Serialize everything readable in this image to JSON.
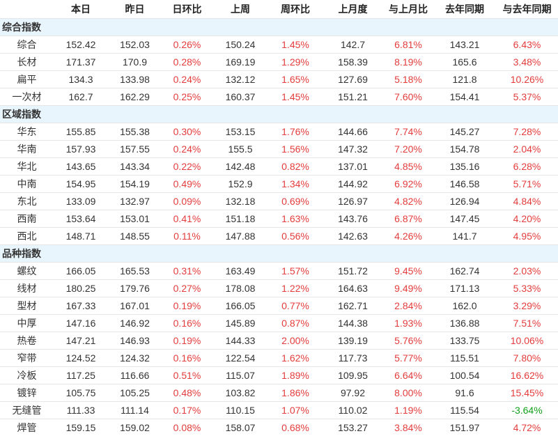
{
  "table": {
    "headers": [
      "",
      "本日",
      "昨日",
      "日环比",
      "上周",
      "周环比",
      "上月度",
      "与上月比",
      "去年同期",
      "与去年同期"
    ],
    "percent_columns": [
      2,
      4,
      6,
      8
    ],
    "colors": {
      "positive_pct": "#e43c3c",
      "negative_pct": "#10a019",
      "section_background": "#e9f5fd",
      "row_border": "#e6e6e6",
      "text": "#333333"
    },
    "sections": [
      {
        "title": "综合指数",
        "rows": [
          {
            "label": "综合",
            "values": [
              "152.42",
              "152.03",
              "0.26%",
              "150.24",
              "1.45%",
              "142.7",
              "6.81%",
              "143.21",
              "6.43%"
            ]
          },
          {
            "label": "长材",
            "values": [
              "171.37",
              "170.9",
              "0.28%",
              "169.19",
              "1.29%",
              "158.39",
              "8.19%",
              "165.6",
              "3.48%"
            ]
          },
          {
            "label": "扁平",
            "values": [
              "134.3",
              "133.98",
              "0.24%",
              "132.12",
              "1.65%",
              "127.69",
              "5.18%",
              "121.8",
              "10.26%"
            ]
          },
          {
            "label": "一次材",
            "values": [
              "162.7",
              "162.29",
              "0.25%",
              "160.37",
              "1.45%",
              "151.21",
              "7.60%",
              "154.41",
              "5.37%"
            ]
          }
        ]
      },
      {
        "title": "区域指数",
        "rows": [
          {
            "label": "华东",
            "values": [
              "155.85",
              "155.38",
              "0.30%",
              "153.15",
              "1.76%",
              "144.66",
              "7.74%",
              "145.27",
              "7.28%"
            ]
          },
          {
            "label": "华南",
            "values": [
              "157.93",
              "157.55",
              "0.24%",
              "155.5",
              "1.56%",
              "147.32",
              "7.20%",
              "154.78",
              "2.04%"
            ]
          },
          {
            "label": "华北",
            "values": [
              "143.65",
              "143.34",
              "0.22%",
              "142.48",
              "0.82%",
              "137.01",
              "4.85%",
              "135.16",
              "6.28%"
            ]
          },
          {
            "label": "中南",
            "values": [
              "154.95",
              "154.19",
              "0.49%",
              "152.9",
              "1.34%",
              "144.92",
              "6.92%",
              "146.58",
              "5.71%"
            ]
          },
          {
            "label": "东北",
            "values": [
              "133.09",
              "132.97",
              "0.09%",
              "132.18",
              "0.69%",
              "126.97",
              "4.82%",
              "126.94",
              "4.84%"
            ]
          },
          {
            "label": "西南",
            "values": [
              "153.64",
              "153.01",
              "0.41%",
              "151.18",
              "1.63%",
              "143.76",
              "6.87%",
              "147.45",
              "4.20%"
            ]
          },
          {
            "label": "西北",
            "values": [
              "148.71",
              "148.55",
              "0.11%",
              "147.88",
              "0.56%",
              "142.63",
              "4.26%",
              "141.7",
              "4.95%"
            ]
          }
        ]
      },
      {
        "title": "品种指数",
        "rows": [
          {
            "label": "螺纹",
            "values": [
              "166.05",
              "165.53",
              "0.31%",
              "163.49",
              "1.57%",
              "151.72",
              "9.45%",
              "162.74",
              "2.03%"
            ]
          },
          {
            "label": "线材",
            "values": [
              "180.25",
              "179.76",
              "0.27%",
              "178.08",
              "1.22%",
              "164.63",
              "9.49%",
              "171.13",
              "5.33%"
            ]
          },
          {
            "label": "型材",
            "values": [
              "167.33",
              "167.01",
              "0.19%",
              "166.05",
              "0.77%",
              "162.71",
              "2.84%",
              "162.0",
              "3.29%"
            ]
          },
          {
            "label": "中厚",
            "values": [
              "147.16",
              "146.92",
              "0.16%",
              "145.89",
              "0.87%",
              "144.38",
              "1.93%",
              "136.88",
              "7.51%"
            ]
          },
          {
            "label": "热卷",
            "values": [
              "147.21",
              "146.93",
              "0.19%",
              "144.33",
              "2.00%",
              "139.19",
              "5.76%",
              "133.75",
              "10.06%"
            ]
          },
          {
            "label": "窄带",
            "values": [
              "124.52",
              "124.32",
              "0.16%",
              "122.54",
              "1.62%",
              "117.73",
              "5.77%",
              "115.51",
              "7.80%"
            ]
          },
          {
            "label": "冷板",
            "values": [
              "117.25",
              "116.66",
              "0.51%",
              "115.07",
              "1.89%",
              "109.95",
              "6.64%",
              "100.54",
              "16.62%"
            ]
          },
          {
            "label": "镀锌",
            "values": [
              "105.75",
              "105.25",
              "0.48%",
              "103.82",
              "1.86%",
              "97.92",
              "8.00%",
              "91.6",
              "15.45%"
            ]
          },
          {
            "label": "无缝管",
            "values": [
              "111.33",
              "111.14",
              "0.17%",
              "110.15",
              "1.07%",
              "110.02",
              "1.19%",
              "115.54",
              "-3.64%"
            ]
          },
          {
            "label": "焊管",
            "values": [
              "159.15",
              "159.02",
              "0.08%",
              "158.07",
              "0.68%",
              "153.27",
              "3.84%",
              "151.97",
              "4.72%"
            ]
          }
        ]
      }
    ]
  }
}
